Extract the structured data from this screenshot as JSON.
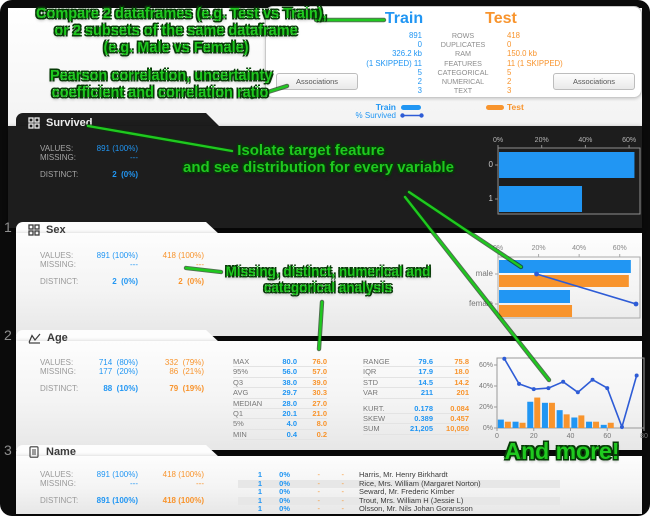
{
  "colors": {
    "train_blue": "#2196f3",
    "test_orange": "#f8942d",
    "survived_line": "#2e5cd6",
    "annotation_green": "#1fc91f"
  },
  "annotations": {
    "compare": [
      "Compare 2 dataframes (e.g. Test vs Train),",
      "or 2 subsets of the same dataframe",
      "(e.g. Male vs Female)"
    ],
    "pearson": [
      "Pearson correlation, uncertainty",
      "coefficient and correlation ratio"
    ],
    "isolate": [
      "Isolate target feature",
      "and see distribution for every variable"
    ],
    "missing": [
      "Missing, distinct, numerical and",
      "categorical analysis"
    ],
    "more": "And more!"
  },
  "summary": {
    "train_label": "Train",
    "test_label": "Test",
    "associations_label": "Associations",
    "rows": [
      {
        "train": "891",
        "label": "ROWS",
        "test": "418"
      },
      {
        "train": "0",
        "label": "DUPLICATES",
        "test": "0"
      },
      {
        "train": "326.2 kb",
        "label": "RAM",
        "test": "150.0 kb"
      },
      {
        "train": "(1 SKIPPED) 11",
        "label": "FEATURES",
        "test": "11 (1 SKIPPED)"
      },
      {
        "train": "5",
        "label": "CATEGORICAL",
        "test": "5"
      },
      {
        "train": "2",
        "label": "NUMERICAL",
        "test": "2"
      },
      {
        "train": "3",
        "label": "TEXT",
        "test": "3"
      }
    ]
  },
  "legend": {
    "train": "Train",
    "survived": "% Survived",
    "test": "Test"
  },
  "features": [
    {
      "index": "",
      "name": "Survived",
      "stats": [
        {
          "label": "VALUES:",
          "train": "891 (100%)",
          "test": ""
        },
        {
          "label": "MISSING:",
          "train": "---",
          "test": ""
        },
        {
          "label": "DISTINCT:",
          "train": "2  (0%)",
          "test": ""
        }
      ]
    },
    {
      "index": "1",
      "name": "Sex",
      "stats": [
        {
          "label": "VALUES:",
          "train": "891 (100%)",
          "test": "418 (100%)"
        },
        {
          "label": "MISSING:",
          "train": "---",
          "test": "---"
        },
        {
          "label": "DISTINCT:",
          "train": "2  (0%)",
          "test": "2  (0%)"
        }
      ]
    },
    {
      "index": "2",
      "name": "Age",
      "stats": [
        {
          "label": "VALUES:",
          "train": "714  (80%)",
          "test": "332  (79%)"
        },
        {
          "label": "MISSING:",
          "train": "177  (20%)",
          "test": "86  (21%)"
        },
        {
          "label": "DISTINCT:",
          "train": "88  (10%)",
          "test": "79  (19%)"
        }
      ],
      "table1": [
        {
          "label": "MAX",
          "train": "80.0",
          "test": "76.0"
        },
        {
          "label": "95%",
          "train": "56.0",
          "test": "57.0"
        },
        {
          "label": "Q3",
          "train": "38.0",
          "test": "39.0"
        },
        {
          "label": "AVG",
          "train": "29.7",
          "test": "30.3"
        },
        {
          "label": "MEDIAN",
          "train": "28.0",
          "test": "27.0"
        },
        {
          "label": "Q1",
          "train": "20.1",
          "test": "21.0"
        },
        {
          "label": "5%",
          "train": "4.0",
          "test": "8.0"
        },
        {
          "label": "MIN",
          "train": "0.4",
          "test": "0.2"
        }
      ],
      "table2": [
        {
          "label": "RANGE",
          "train": "79.6",
          "test": "75.8"
        },
        {
          "label": "IQR",
          "train": "17.9",
          "test": "18.0"
        },
        {
          "label": "STD",
          "train": "14.5",
          "test": "14.2"
        },
        {
          "label": "VAR",
          "train": "211",
          "test": "201"
        },
        {
          "label": "KURT.",
          "train": "0.178",
          "test": "0.084"
        },
        {
          "label": "SKEW",
          "train": "0.389",
          "test": "0.457"
        },
        {
          "label": "SUM",
          "train": "21,205",
          "test": "10,050"
        }
      ]
    },
    {
      "index": "3",
      "name": "Name",
      "stats": [
        {
          "label": "VALUES:",
          "train": "891 (100%)",
          "test": "418 (100%)"
        },
        {
          "label": "MISSING:",
          "train": "---",
          "test": "---"
        },
        {
          "label": "DISTINCT:",
          "train": "891 (100%)",
          "test": "418 (100%)"
        }
      ],
      "list": [
        {
          "count": "1",
          "pct": "0%",
          "dash1": "-",
          "dash2": "-",
          "name": "Harris, Mr. Henry Birkhardt"
        },
        {
          "count": "1",
          "pct": "0%",
          "dash1": "-",
          "dash2": "-",
          "name": "Rice, Mrs. William (Margaret Norton)"
        },
        {
          "count": "1",
          "pct": "0%",
          "dash1": "-",
          "dash2": "-",
          "name": "Seward, Mr. Frederic Kimber"
        },
        {
          "count": "1",
          "pct": "0%",
          "dash1": "-",
          "dash2": "-",
          "name": "Trout, Mrs. William H (Jessie L)"
        },
        {
          "count": "1",
          "pct": "0%",
          "dash1": "-",
          "dash2": "-",
          "name": "Olsson, Mr. Nils Johan Goransson"
        }
      ]
    }
  ],
  "chart_data": [
    {
      "id": "survived",
      "type": "bar",
      "orientation": "horizontal",
      "theme": "dark",
      "categories": [
        "0",
        "1"
      ],
      "series": [
        {
          "name": "Train",
          "color": "#2196f3",
          "values": [
            62,
            38
          ]
        }
      ],
      "x_ticks": [
        "0%",
        "20%",
        "40%",
        "60%"
      ],
      "x_tick_values": [
        0,
        20,
        40,
        60
      ],
      "xlim": [
        0,
        65
      ],
      "grid": false
    },
    {
      "id": "sex",
      "type": "bar",
      "orientation": "horizontal",
      "categories": [
        "male",
        "female"
      ],
      "series": [
        {
          "name": "Train",
          "color": "#2196f3",
          "values": [
            65,
            35
          ]
        },
        {
          "name": "Test",
          "color": "#f8942d",
          "values": [
            64,
            36
          ]
        }
      ],
      "line_series": {
        "name": "% Survived",
        "color": "#2e5cd6",
        "values": [
          19,
          74
        ]
      },
      "x_ticks": [
        "0%",
        "20%",
        "40%",
        "60%"
      ],
      "x_tick_values": [
        0,
        20,
        40,
        60
      ],
      "xlim": [
        0,
        70
      ],
      "grid": false
    },
    {
      "id": "age",
      "type": "histogram",
      "x": [
        4,
        12,
        20,
        28,
        36,
        44,
        52,
        60,
        68,
        76
      ],
      "series": [
        {
          "name": "Train",
          "color": "#2196f3",
          "values": [
            8,
            6,
            25,
            24,
            17,
            10,
            6,
            3,
            0,
            0
          ]
        },
        {
          "name": "Test",
          "color": "#f8942d",
          "values": [
            6,
            5,
            29,
            24,
            13,
            12,
            6,
            5,
            0,
            0
          ]
        }
      ],
      "line_series": {
        "name": "% Survived",
        "color": "#2e5cd6",
        "values": [
          66,
          42,
          37,
          38,
          44,
          34,
          46,
          38,
          1,
          50
        ]
      },
      "x_ticks": [
        "0",
        "20",
        "40",
        "60",
        "80"
      ],
      "x_tick_values": [
        0,
        20,
        40,
        60,
        80
      ],
      "y_ticks": [
        "60%",
        "40%",
        "20%",
        "0%"
      ],
      "y_tick_values": [
        60,
        40,
        20,
        0
      ],
      "xlim": [
        0,
        80
      ],
      "ylim": [
        0,
        66
      ],
      "grid": false
    }
  ]
}
